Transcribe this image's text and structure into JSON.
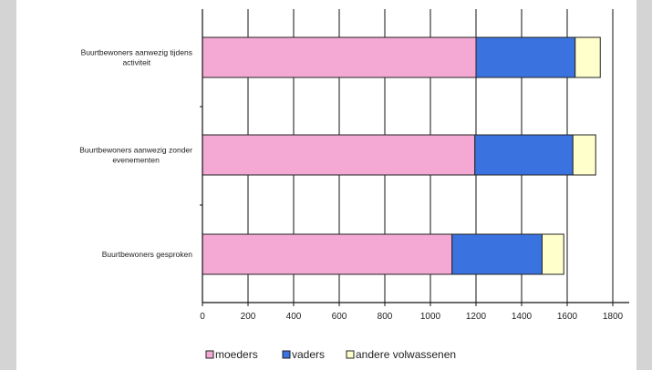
{
  "chart_data": {
    "type": "bar",
    "orientation": "horizontal",
    "stacked": true,
    "categories": [
      [
        "Buurtbewoners aanwezig tijdens",
        "activiteit"
      ],
      [
        "Buurtbewoners aanwezig zonder",
        "evenementen"
      ],
      [
        "Buurtbewoners gesproken"
      ]
    ],
    "series": [
      {
        "name": "moeders",
        "color": "#f4a9d4",
        "values": [
          1200,
          1195,
          1095
        ]
      },
      {
        "name": "vaders",
        "color": "#3a73e0",
        "values": [
          435,
          430,
          395
        ]
      },
      {
        "name": "andere volwassenen",
        "color": "#ffffcc",
        "values": [
          110,
          100,
          95
        ]
      }
    ],
    "xlim": [
      0,
      1800
    ],
    "xticks": [
      0,
      200,
      400,
      600,
      800,
      1000,
      1200,
      1400,
      1600,
      1800
    ],
    "grid": "vertical",
    "legend": "bottom",
    "title": "",
    "xlabel": "",
    "ylabel": ""
  }
}
